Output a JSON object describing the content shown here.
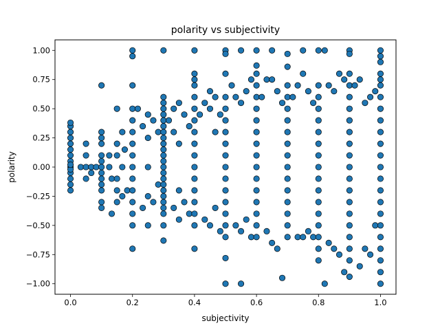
{
  "chart_data": {
    "type": "scatter",
    "title": "polarity vs subjectivity",
    "xlabel": "subjectivity",
    "ylabel": "polarity",
    "xlim": [
      -0.05,
      1.05
    ],
    "ylim": [
      -1.09,
      1.09
    ],
    "x_ticks": [
      0.0,
      0.2,
      0.4,
      0.6,
      0.8,
      1.0
    ],
    "x_tick_labels": [
      "0.0",
      "0.2",
      "0.4",
      "0.6",
      "0.8",
      "1.0"
    ],
    "y_ticks": [
      -1.0,
      -0.75,
      -0.5,
      -0.25,
      0.0,
      0.25,
      0.5,
      0.75,
      1.0
    ],
    "y_tick_labels": [
      "−1.00",
      "−0.75",
      "−0.50",
      "−0.25",
      "0.00",
      "0.25",
      "0.50",
      "0.75",
      "1.00"
    ],
    "grid": false,
    "legend": "none",
    "marker_color": "#1f77b4",
    "marker_edge_color": "#000000",
    "points": [
      [
        0.0,
        0.0
      ],
      [
        0.0,
        0.05
      ],
      [
        0.0,
        -0.05
      ],
      [
        0.0,
        0.1
      ],
      [
        0.0,
        -0.1
      ],
      [
        0.0,
        0.15
      ],
      [
        0.0,
        -0.15
      ],
      [
        0.0,
        0.2
      ],
      [
        0.0,
        -0.2
      ],
      [
        0.0,
        0.25
      ],
      [
        0.0,
        0.3
      ],
      [
        0.0,
        0.35
      ],
      [
        0.0,
        0.38
      ],
      [
        0.0,
        -0.02
      ],
      [
        0.0,
        0.02
      ],
      [
        0.033,
        0.0
      ],
      [
        0.05,
        0.0
      ],
      [
        0.05,
        0.1
      ],
      [
        0.05,
        -0.1
      ],
      [
        0.05,
        0.2
      ],
      [
        0.067,
        0.0
      ],
      [
        0.067,
        -0.05
      ],
      [
        0.083,
        0.0
      ],
      [
        0.1,
        0.7
      ],
      [
        0.1,
        0.3
      ],
      [
        0.1,
        0.25
      ],
      [
        0.1,
        0.2
      ],
      [
        0.1,
        0.1
      ],
      [
        0.1,
        0.05
      ],
      [
        0.1,
        -0.05
      ],
      [
        0.1,
        -0.1
      ],
      [
        0.1,
        -0.15
      ],
      [
        0.1,
        -0.2
      ],
      [
        0.1,
        -0.3
      ],
      [
        0.1,
        -0.35
      ],
      [
        0.1,
        0.0
      ],
      [
        0.125,
        0.0
      ],
      [
        0.125,
        0.1
      ],
      [
        0.133,
        -0.1
      ],
      [
        0.133,
        -0.4
      ],
      [
        0.15,
        0.5
      ],
      [
        0.15,
        0.2
      ],
      [
        0.15,
        0.1
      ],
      [
        0.15,
        -0.1
      ],
      [
        0.15,
        -0.2
      ],
      [
        0.15,
        -0.3
      ],
      [
        0.167,
        0.0
      ],
      [
        0.167,
        0.3
      ],
      [
        0.167,
        -0.25
      ],
      [
        0.175,
        0.15
      ],
      [
        0.183,
        -0.2
      ],
      [
        0.2,
        1.0
      ],
      [
        0.2,
        0.95
      ],
      [
        0.2,
        0.7
      ],
      [
        0.2,
        0.5
      ],
      [
        0.2,
        0.4
      ],
      [
        0.2,
        0.3
      ],
      [
        0.2,
        0.2
      ],
      [
        0.2,
        0.1
      ],
      [
        0.2,
        0.0
      ],
      [
        0.2,
        -0.1
      ],
      [
        0.2,
        -0.2
      ],
      [
        0.2,
        -0.3
      ],
      [
        0.2,
        -0.4
      ],
      [
        0.2,
        -0.5
      ],
      [
        0.2,
        -0.7
      ],
      [
        0.217,
        0.5
      ],
      [
        0.233,
        0.35
      ],
      [
        0.233,
        -0.35
      ],
      [
        0.25,
        0.45
      ],
      [
        0.25,
        0.25
      ],
      [
        0.25,
        0.0
      ],
      [
        0.25,
        -0.25
      ],
      [
        0.25,
        -0.5
      ],
      [
        0.267,
        0.4
      ],
      [
        0.267,
        -0.3
      ],
      [
        0.283,
        0.3
      ],
      [
        0.283,
        -0.15
      ],
      [
        0.3,
        1.0
      ],
      [
        0.3,
        0.6
      ],
      [
        0.3,
        0.55
      ],
      [
        0.3,
        0.5
      ],
      [
        0.3,
        0.45
      ],
      [
        0.3,
        0.4
      ],
      [
        0.3,
        0.35
      ],
      [
        0.3,
        0.3
      ],
      [
        0.3,
        0.25
      ],
      [
        0.3,
        0.2
      ],
      [
        0.3,
        0.15
      ],
      [
        0.3,
        0.1
      ],
      [
        0.3,
        0.05
      ],
      [
        0.3,
        0.0
      ],
      [
        0.3,
        -0.05
      ],
      [
        0.3,
        -0.1
      ],
      [
        0.3,
        -0.15
      ],
      [
        0.3,
        -0.2
      ],
      [
        0.3,
        -0.25
      ],
      [
        0.3,
        -0.3
      ],
      [
        0.3,
        -0.35
      ],
      [
        0.3,
        -0.4
      ],
      [
        0.3,
        -0.5
      ],
      [
        0.3,
        -0.63
      ],
      [
        0.317,
        0.4
      ],
      [
        0.333,
        0.5
      ],
      [
        0.333,
        0.3
      ],
      [
        0.333,
        -0.35
      ],
      [
        0.35,
        0.55
      ],
      [
        0.35,
        0.2
      ],
      [
        0.35,
        -0.2
      ],
      [
        0.35,
        -0.45
      ],
      [
        0.367,
        0.45
      ],
      [
        0.367,
        -0.3
      ],
      [
        0.383,
        0.35
      ],
      [
        0.383,
        -0.4
      ],
      [
        0.4,
        1.0
      ],
      [
        0.4,
        0.8
      ],
      [
        0.4,
        0.75
      ],
      [
        0.4,
        0.7
      ],
      [
        0.4,
        0.6
      ],
      [
        0.4,
        0.5
      ],
      [
        0.4,
        0.4
      ],
      [
        0.4,
        0.3
      ],
      [
        0.4,
        0.2
      ],
      [
        0.4,
        0.1
      ],
      [
        0.4,
        0.0
      ],
      [
        0.4,
        -0.1
      ],
      [
        0.4,
        -0.2
      ],
      [
        0.4,
        -0.3
      ],
      [
        0.4,
        -0.4
      ],
      [
        0.4,
        -0.5
      ],
      [
        0.4,
        -0.7
      ],
      [
        0.417,
        0.45
      ],
      [
        0.433,
        0.55
      ],
      [
        0.433,
        -0.45
      ],
      [
        0.45,
        0.65
      ],
      [
        0.45,
        0.5
      ],
      [
        0.45,
        -0.5
      ],
      [
        0.467,
        0.6
      ],
      [
        0.467,
        0.3
      ],
      [
        0.467,
        -0.35
      ],
      [
        0.483,
        0.45
      ],
      [
        0.483,
        -0.55
      ],
      [
        0.5,
        1.0
      ],
      [
        0.5,
        0.97
      ],
      [
        0.5,
        0.8
      ],
      [
        0.5,
        0.6
      ],
      [
        0.5,
        0.5
      ],
      [
        0.5,
        0.4
      ],
      [
        0.5,
        0.3
      ],
      [
        0.5,
        0.2
      ],
      [
        0.5,
        0.1
      ],
      [
        0.5,
        0.0
      ],
      [
        0.5,
        -0.1
      ],
      [
        0.5,
        -0.2
      ],
      [
        0.5,
        -0.3
      ],
      [
        0.5,
        -0.4
      ],
      [
        0.5,
        -0.5
      ],
      [
        0.5,
        -0.6
      ],
      [
        0.5,
        -0.78
      ],
      [
        0.5,
        -1.0
      ],
      [
        0.52,
        0.7
      ],
      [
        0.533,
        0.6
      ],
      [
        0.533,
        -0.5
      ],
      [
        0.55,
        1.0
      ],
      [
        0.55,
        0.55
      ],
      [
        0.55,
        -0.55
      ],
      [
        0.55,
        -1.0
      ],
      [
        0.567,
        0.65
      ],
      [
        0.567,
        -0.45
      ],
      [
        0.583,
        0.75
      ],
      [
        0.583,
        -0.6
      ],
      [
        0.6,
        1.0
      ],
      [
        0.6,
        0.87
      ],
      [
        0.6,
        0.8
      ],
      [
        0.6,
        0.7
      ],
      [
        0.6,
        0.6
      ],
      [
        0.6,
        0.5
      ],
      [
        0.6,
        0.4
      ],
      [
        0.6,
        0.3
      ],
      [
        0.6,
        0.2
      ],
      [
        0.6,
        0.1
      ],
      [
        0.6,
        0.0
      ],
      [
        0.6,
        -0.1
      ],
      [
        0.6,
        -0.2
      ],
      [
        0.6,
        -0.3
      ],
      [
        0.6,
        -0.4
      ],
      [
        0.6,
        -0.5
      ],
      [
        0.6,
        -0.6
      ],
      [
        0.617,
        0.6
      ],
      [
        0.633,
        0.75
      ],
      [
        0.633,
        -0.55
      ],
      [
        0.65,
        1.0
      ],
      [
        0.65,
        0.75
      ],
      [
        0.65,
        -0.65
      ],
      [
        0.667,
        0.65
      ],
      [
        0.667,
        -0.7
      ],
      [
        0.683,
        0.55
      ],
      [
        0.683,
        -0.95
      ],
      [
        0.7,
        0.97
      ],
      [
        0.7,
        0.86
      ],
      [
        0.7,
        0.7
      ],
      [
        0.7,
        0.6
      ],
      [
        0.7,
        0.5
      ],
      [
        0.7,
        0.4
      ],
      [
        0.7,
        0.3
      ],
      [
        0.7,
        0.2
      ],
      [
        0.7,
        0.1
      ],
      [
        0.7,
        0.0
      ],
      [
        0.7,
        -0.1
      ],
      [
        0.7,
        -0.2
      ],
      [
        0.7,
        -0.3
      ],
      [
        0.7,
        -0.4
      ],
      [
        0.7,
        -0.5
      ],
      [
        0.7,
        -0.6
      ],
      [
        0.717,
        0.6
      ],
      [
        0.733,
        0.7
      ],
      [
        0.733,
        -0.6
      ],
      [
        0.75,
        1.0
      ],
      [
        0.75,
        0.8
      ],
      [
        0.75,
        -0.6
      ],
      [
        0.767,
        0.65
      ],
      [
        0.767,
        -0.55
      ],
      [
        0.783,
        0.55
      ],
      [
        0.783,
        -0.6
      ],
      [
        0.8,
        1.0
      ],
      [
        0.8,
        0.7
      ],
      [
        0.8,
        0.6
      ],
      [
        0.8,
        0.5
      ],
      [
        0.8,
        0.4
      ],
      [
        0.8,
        0.3
      ],
      [
        0.8,
        0.2
      ],
      [
        0.8,
        0.1
      ],
      [
        0.8,
        0.0
      ],
      [
        0.8,
        -0.1
      ],
      [
        0.8,
        -0.2
      ],
      [
        0.8,
        -0.3
      ],
      [
        0.8,
        -0.4
      ],
      [
        0.8,
        -0.5
      ],
      [
        0.8,
        -0.6
      ],
      [
        0.8,
        -0.7
      ],
      [
        0.8,
        -0.8
      ],
      [
        0.82,
        1.0
      ],
      [
        0.82,
        -1.0
      ],
      [
        0.833,
        0.7
      ],
      [
        0.833,
        -0.65
      ],
      [
        0.85,
        0.65
      ],
      [
        0.85,
        -0.7
      ],
      [
        0.867,
        0.8
      ],
      [
        0.867,
        -0.75
      ],
      [
        0.883,
        0.75
      ],
      [
        0.883,
        -0.9
      ],
      [
        0.9,
        1.0
      ],
      [
        0.9,
        0.97
      ],
      [
        0.9,
        0.8
      ],
      [
        0.9,
        0.7
      ],
      [
        0.9,
        0.6
      ],
      [
        0.9,
        0.5
      ],
      [
        0.9,
        0.4
      ],
      [
        0.9,
        0.3
      ],
      [
        0.9,
        0.2
      ],
      [
        0.9,
        0.1
      ],
      [
        0.9,
        0.0
      ],
      [
        0.9,
        -0.1
      ],
      [
        0.9,
        -0.2
      ],
      [
        0.9,
        -0.3
      ],
      [
        0.9,
        -0.4
      ],
      [
        0.9,
        -0.5
      ],
      [
        0.9,
        -0.6
      ],
      [
        0.9,
        -0.7
      ],
      [
        0.9,
        -0.8
      ],
      [
        0.9,
        -0.94
      ],
      [
        0.917,
        0.7
      ],
      [
        0.933,
        0.75
      ],
      [
        0.933,
        -0.85
      ],
      [
        0.95,
        0.55
      ],
      [
        0.95,
        -0.7
      ],
      [
        0.967,
        0.6
      ],
      [
        0.967,
        -0.75
      ],
      [
        0.983,
        0.65
      ],
      [
        0.983,
        -0.5
      ],
      [
        1.0,
        1.0
      ],
      [
        1.0,
        0.95
      ],
      [
        1.0,
        0.9
      ],
      [
        1.0,
        0.8
      ],
      [
        1.0,
        0.75
      ],
      [
        1.0,
        0.7
      ],
      [
        1.0,
        0.6
      ],
      [
        1.0,
        0.5
      ],
      [
        1.0,
        0.4
      ],
      [
        1.0,
        0.3
      ],
      [
        1.0,
        0.2
      ],
      [
        1.0,
        0.1
      ],
      [
        1.0,
        0.0
      ],
      [
        1.0,
        -0.1
      ],
      [
        1.0,
        -0.2
      ],
      [
        1.0,
        -0.3
      ],
      [
        1.0,
        -0.4
      ],
      [
        1.0,
        -0.5
      ],
      [
        1.0,
        -0.6
      ],
      [
        1.0,
        -0.7
      ],
      [
        1.0,
        -0.8
      ],
      [
        1.0,
        -0.9
      ],
      [
        1.0,
        -1.0
      ]
    ]
  }
}
